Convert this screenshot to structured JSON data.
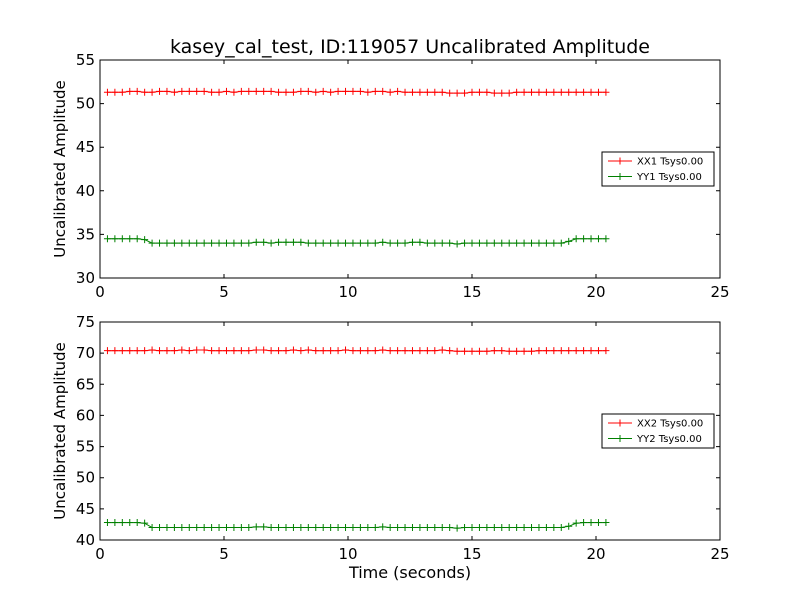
{
  "figure_title": "kasey_cal_test, ID:119057 Uncalibrated Amplitude",
  "xlabel": "Time (seconds)",
  "chart_data": [
    {
      "type": "line",
      "title": "kasey_cal_test, ID:119057 Uncalibrated Amplitude",
      "xlabel": "",
      "ylabel": "Uncalibrated Amplitude",
      "xlim": [
        0,
        25
      ],
      "ylim": [
        30,
        55
      ],
      "xticks": [
        0,
        5,
        10,
        15,
        20,
        25
      ],
      "yticks": [
        30,
        35,
        40,
        45,
        50,
        55
      ],
      "legend_placement": "center-right",
      "x": [
        0.3,
        0.6,
        0.9,
        1.2,
        1.5,
        1.8,
        2.1,
        2.4,
        2.7,
        3.0,
        3.3,
        3.6,
        3.9,
        4.2,
        4.5,
        4.8,
        5.1,
        5.4,
        5.7,
        6.0,
        6.3,
        6.6,
        6.9,
        7.2,
        7.5,
        7.8,
        8.1,
        8.4,
        8.7,
        9.0,
        9.3,
        9.6,
        9.9,
        10.2,
        10.5,
        10.8,
        11.1,
        11.4,
        11.7,
        12.0,
        12.3,
        12.6,
        12.9,
        13.2,
        13.5,
        13.8,
        14.1,
        14.4,
        14.7,
        15.0,
        15.3,
        15.6,
        15.9,
        16.2,
        16.5,
        16.8,
        17.1,
        17.4,
        17.7,
        18.0,
        18.3,
        18.6,
        18.9,
        19.2,
        19.5,
        19.8,
        20.1,
        20.4
      ],
      "series": [
        {
          "name": "XX1 Tsys0.00",
          "color": "#ff0000",
          "values": [
            51.3,
            51.3,
            51.3,
            51.4,
            51.4,
            51.3,
            51.3,
            51.4,
            51.4,
            51.3,
            51.4,
            51.4,
            51.4,
            51.4,
            51.3,
            51.3,
            51.4,
            51.3,
            51.4,
            51.4,
            51.4,
            51.4,
            51.4,
            51.3,
            51.3,
            51.3,
            51.4,
            51.4,
            51.3,
            51.4,
            51.3,
            51.4,
            51.4,
            51.4,
            51.4,
            51.3,
            51.4,
            51.4,
            51.3,
            51.4,
            51.3,
            51.3,
            51.3,
            51.3,
            51.3,
            51.3,
            51.2,
            51.2,
            51.2,
            51.3,
            51.3,
            51.3,
            51.2,
            51.2,
            51.2,
            51.3,
            51.3,
            51.3,
            51.3,
            51.3,
            51.3,
            51.3,
            51.3,
            51.3,
            51.3,
            51.3,
            51.3,
            51.3
          ]
        },
        {
          "name": "YY1 Tsys0.00",
          "color": "#008000",
          "values": [
            34.5,
            34.5,
            34.5,
            34.5,
            34.5,
            34.4,
            34.0,
            34.0,
            34.0,
            34.0,
            34.0,
            34.0,
            34.0,
            34.0,
            34.0,
            34.0,
            34.0,
            34.0,
            34.0,
            34.0,
            34.1,
            34.1,
            34.0,
            34.1,
            34.1,
            34.1,
            34.1,
            34.0,
            34.0,
            34.0,
            34.0,
            34.0,
            34.0,
            34.0,
            34.0,
            34.0,
            34.0,
            34.1,
            34.0,
            34.0,
            34.0,
            34.1,
            34.1,
            34.0,
            34.0,
            34.0,
            34.0,
            33.9,
            34.0,
            34.0,
            34.0,
            34.0,
            34.0,
            34.0,
            34.0,
            34.0,
            34.0,
            34.0,
            34.0,
            34.0,
            34.0,
            34.0,
            34.2,
            34.5,
            34.5,
            34.5,
            34.5,
            34.5
          ]
        }
      ]
    },
    {
      "type": "line",
      "title": "",
      "xlabel": "Time (seconds)",
      "ylabel": "Uncalibrated Amplitude",
      "xlim": [
        0,
        25
      ],
      "ylim": [
        40,
        75
      ],
      "xticks": [
        0,
        5,
        10,
        15,
        20,
        25
      ],
      "yticks": [
        40,
        45,
        50,
        55,
        60,
        65,
        70,
        75
      ],
      "legend_placement": "center-right",
      "x": [
        0.3,
        0.6,
        0.9,
        1.2,
        1.5,
        1.8,
        2.1,
        2.4,
        2.7,
        3.0,
        3.3,
        3.6,
        3.9,
        4.2,
        4.5,
        4.8,
        5.1,
        5.4,
        5.7,
        6.0,
        6.3,
        6.6,
        6.9,
        7.2,
        7.5,
        7.8,
        8.1,
        8.4,
        8.7,
        9.0,
        9.3,
        9.6,
        9.9,
        10.2,
        10.5,
        10.8,
        11.1,
        11.4,
        11.7,
        12.0,
        12.3,
        12.6,
        12.9,
        13.2,
        13.5,
        13.8,
        14.1,
        14.4,
        14.7,
        15.0,
        15.3,
        15.6,
        15.9,
        16.2,
        16.5,
        16.8,
        17.1,
        17.4,
        17.7,
        18.0,
        18.3,
        18.6,
        18.9,
        19.2,
        19.5,
        19.8,
        20.1,
        20.4
      ],
      "series": [
        {
          "name": "XX2 Tsys0.00",
          "color": "#ff0000",
          "values": [
            70.4,
            70.4,
            70.4,
            70.4,
            70.4,
            70.4,
            70.5,
            70.4,
            70.4,
            70.4,
            70.5,
            70.4,
            70.5,
            70.5,
            70.4,
            70.4,
            70.4,
            70.4,
            70.4,
            70.4,
            70.5,
            70.5,
            70.4,
            70.4,
            70.4,
            70.5,
            70.4,
            70.5,
            70.4,
            70.4,
            70.4,
            70.4,
            70.5,
            70.4,
            70.4,
            70.4,
            70.4,
            70.5,
            70.4,
            70.4,
            70.4,
            70.4,
            70.4,
            70.4,
            70.4,
            70.5,
            70.4,
            70.3,
            70.3,
            70.3,
            70.3,
            70.3,
            70.4,
            70.4,
            70.3,
            70.3,
            70.3,
            70.3,
            70.4,
            70.4,
            70.4,
            70.4,
            70.4,
            70.4,
            70.4,
            70.4,
            70.4,
            70.4
          ]
        },
        {
          "name": "YY2 Tsys0.00",
          "color": "#008000",
          "values": [
            42.8,
            42.8,
            42.8,
            42.8,
            42.8,
            42.7,
            42.0,
            42.0,
            42.0,
            42.0,
            42.0,
            42.0,
            42.0,
            42.0,
            42.0,
            42.0,
            42.0,
            42.0,
            42.0,
            42.0,
            42.1,
            42.1,
            42.0,
            42.0,
            42.0,
            42.0,
            42.0,
            42.0,
            42.0,
            42.0,
            42.0,
            42.0,
            42.0,
            42.0,
            42.0,
            42.0,
            42.0,
            42.1,
            42.0,
            42.0,
            42.0,
            42.0,
            42.0,
            42.0,
            42.0,
            42.0,
            42.0,
            41.9,
            42.0,
            42.0,
            42.0,
            42.0,
            42.0,
            42.0,
            42.0,
            42.0,
            42.0,
            42.0,
            42.0,
            42.0,
            42.0,
            42.0,
            42.2,
            42.7,
            42.8,
            42.8,
            42.8,
            42.8
          ]
        }
      ]
    }
  ]
}
